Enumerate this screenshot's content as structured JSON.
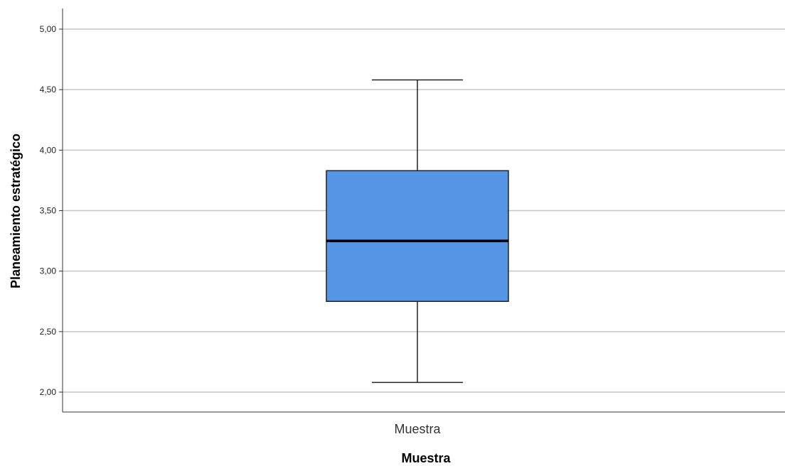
{
  "chart_data": {
    "type": "boxplot",
    "title": "",
    "xlabel": "Muestra",
    "ylabel": "Planeamiento estratégico",
    "ylim": [
      2.0,
      5.0
    ],
    "yticks": [
      {
        "value": 2.0,
        "label": "2,00"
      },
      {
        "value": 2.5,
        "label": "2,50"
      },
      {
        "value": 3.0,
        "label": "3,00"
      },
      {
        "value": 3.5,
        "label": "3,50"
      },
      {
        "value": 4.0,
        "label": "4,00"
      },
      {
        "value": 4.5,
        "label": "4,50"
      },
      {
        "value": 5.0,
        "label": "5,00"
      }
    ],
    "grid": "horizontal",
    "categories": [
      "Muestra"
    ],
    "boxes": [
      {
        "category": "Muestra",
        "min": 2.08,
        "q1": 2.75,
        "median": 3.25,
        "q3": 3.83,
        "max": 4.58
      }
    ],
    "colors": {
      "box_fill": "#5595e5",
      "box_stroke": "#222222",
      "median": "#000000",
      "grid": "#c4c4c4",
      "axis": "#333333"
    }
  }
}
